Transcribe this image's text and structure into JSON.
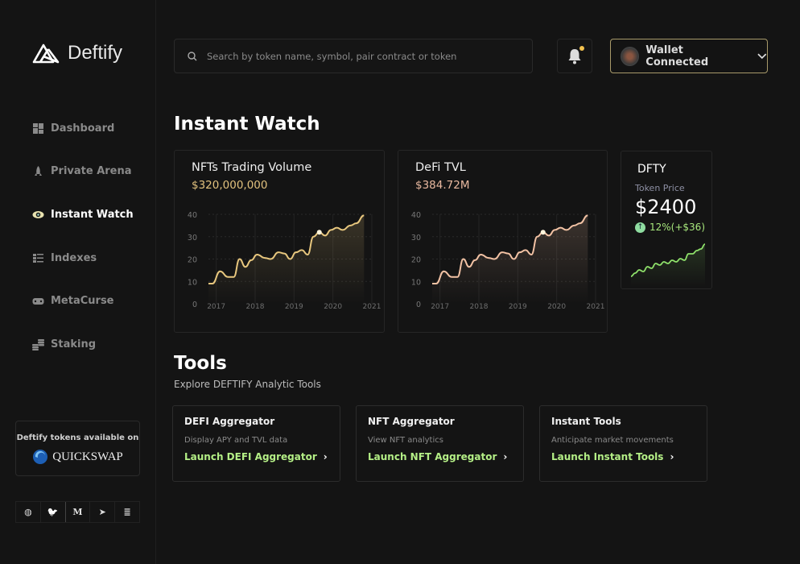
{
  "brand": {
    "name": "Deftify"
  },
  "sidebar": {
    "items": [
      {
        "label": "Dashboard",
        "icon": "grid-icon",
        "active": false
      },
      {
        "label": "Private Arena",
        "icon": "rocket-icon",
        "active": false
      },
      {
        "label": "Instant Watch",
        "icon": "eye-icon",
        "active": true
      },
      {
        "label": "Indexes",
        "icon": "list-icon",
        "active": false
      },
      {
        "label": "MetaCurse",
        "icon": "gamepad-icon",
        "active": false
      },
      {
        "label": "Staking",
        "icon": "coins-icon",
        "active": false
      }
    ],
    "promo": {
      "text": "Deftify tokens available on",
      "partner": "QUICKSWAP"
    },
    "social": [
      {
        "icon": "globe-icon",
        "glyph": "◍"
      },
      {
        "icon": "twitter-icon",
        "glyph": "🐦"
      },
      {
        "icon": "medium-icon",
        "glyph": "M"
      },
      {
        "icon": "telegram-icon",
        "glyph": "➤"
      },
      {
        "icon": "docs-icon",
        "glyph": "≣"
      }
    ]
  },
  "header": {
    "search_placeholder": "Search by token name, symbol, pair contract or token",
    "wallet_label": "Wallet Connected",
    "notification_dot": true
  },
  "instant_watch": {
    "title": "Instant Watch",
    "nft": {
      "title": "NFTs Trading Volume",
      "value": "$320,000,000",
      "color": "#e8c77e"
    },
    "tvl": {
      "title": "DeFi TVL",
      "value": "$384.72M",
      "color": "#f2c2a4"
    },
    "dfty": {
      "symbol": "DFTY",
      "label": "Token Price",
      "price": "$2400",
      "change": "12%(+$36)",
      "color": "#8ee06a"
    }
  },
  "tools": {
    "title": "Tools",
    "subtitle": "Explore DEFTIFY Analytic Tools",
    "items": [
      {
        "title": "DEFI Aggregator",
        "desc": "Display APY and TVL data",
        "link": "Launch DEFI Aggregator"
      },
      {
        "title": "NFT Aggregator",
        "desc": "View NFT analytics",
        "link": "Launch NFT Aggregator"
      },
      {
        "title": "Instant Tools",
        "desc": "Anticipate market movements",
        "link": "Launch Instant Tools"
      }
    ]
  },
  "chart_data": [
    {
      "type": "line",
      "title": "NFTs Trading Volume",
      "ylim": [
        0,
        40
      ],
      "xlim": [
        2016.8,
        2021
      ],
      "yticks": [
        "0",
        "10",
        "20",
        "30",
        "40"
      ],
      "xticks": [
        "2017",
        "2018",
        "2019",
        "2020",
        "2021"
      ],
      "grid": true,
      "x": [
        2016.8,
        2016.9,
        2017.1,
        2017.3,
        2017.45,
        2017.6,
        2017.75,
        2017.9,
        2018.05,
        2018.25,
        2018.4,
        2018.6,
        2018.75,
        2018.9,
        2019.05,
        2019.2,
        2019.35,
        2019.5,
        2019.65,
        2019.8,
        2019.95,
        2020.1,
        2020.25,
        2020.45,
        2020.6,
        2020.8
      ],
      "y": [
        9,
        9,
        14.5,
        12,
        12,
        20,
        16.5,
        19.5,
        22,
        20.5,
        20,
        23,
        22.5,
        20,
        23,
        24,
        22,
        30,
        32,
        30.5,
        33,
        34,
        33,
        35,
        36,
        39.5
      ],
      "highlight": {
        "x": 2019.65,
        "y": 32
      }
    },
    {
      "type": "line",
      "title": "DeFi TVL",
      "ylim": [
        0,
        40
      ],
      "xlim": [
        2016.8,
        2021
      ],
      "yticks": [
        "0",
        "10",
        "20",
        "30",
        "40"
      ],
      "xticks": [
        "2017",
        "2018",
        "2019",
        "2020",
        "2021"
      ],
      "grid": true,
      "x": [
        2016.8,
        2016.9,
        2017.1,
        2017.3,
        2017.45,
        2017.6,
        2017.75,
        2017.9,
        2018.05,
        2018.25,
        2018.4,
        2018.6,
        2018.75,
        2018.9,
        2019.05,
        2019.2,
        2019.35,
        2019.5,
        2019.65,
        2019.8,
        2019.95,
        2020.1,
        2020.25,
        2020.45,
        2020.6,
        2020.8
      ],
      "y": [
        9,
        9,
        14.5,
        12,
        12,
        20,
        16.5,
        19.5,
        22,
        20.5,
        20,
        23,
        22.5,
        20,
        23,
        24,
        22,
        30,
        32,
        30.5,
        33,
        34,
        33,
        35,
        36,
        39.5
      ],
      "highlight": {
        "x": 2019.65,
        "y": 32
      }
    },
    {
      "type": "line",
      "title": "DFTY sparkline",
      "y": [
        2,
        3,
        4,
        3.5,
        5,
        4.5,
        6,
        5.5,
        6.5,
        6,
        7,
        6.5,
        7.5,
        7,
        9,
        9,
        10,
        10.5,
        12
      ]
    }
  ]
}
